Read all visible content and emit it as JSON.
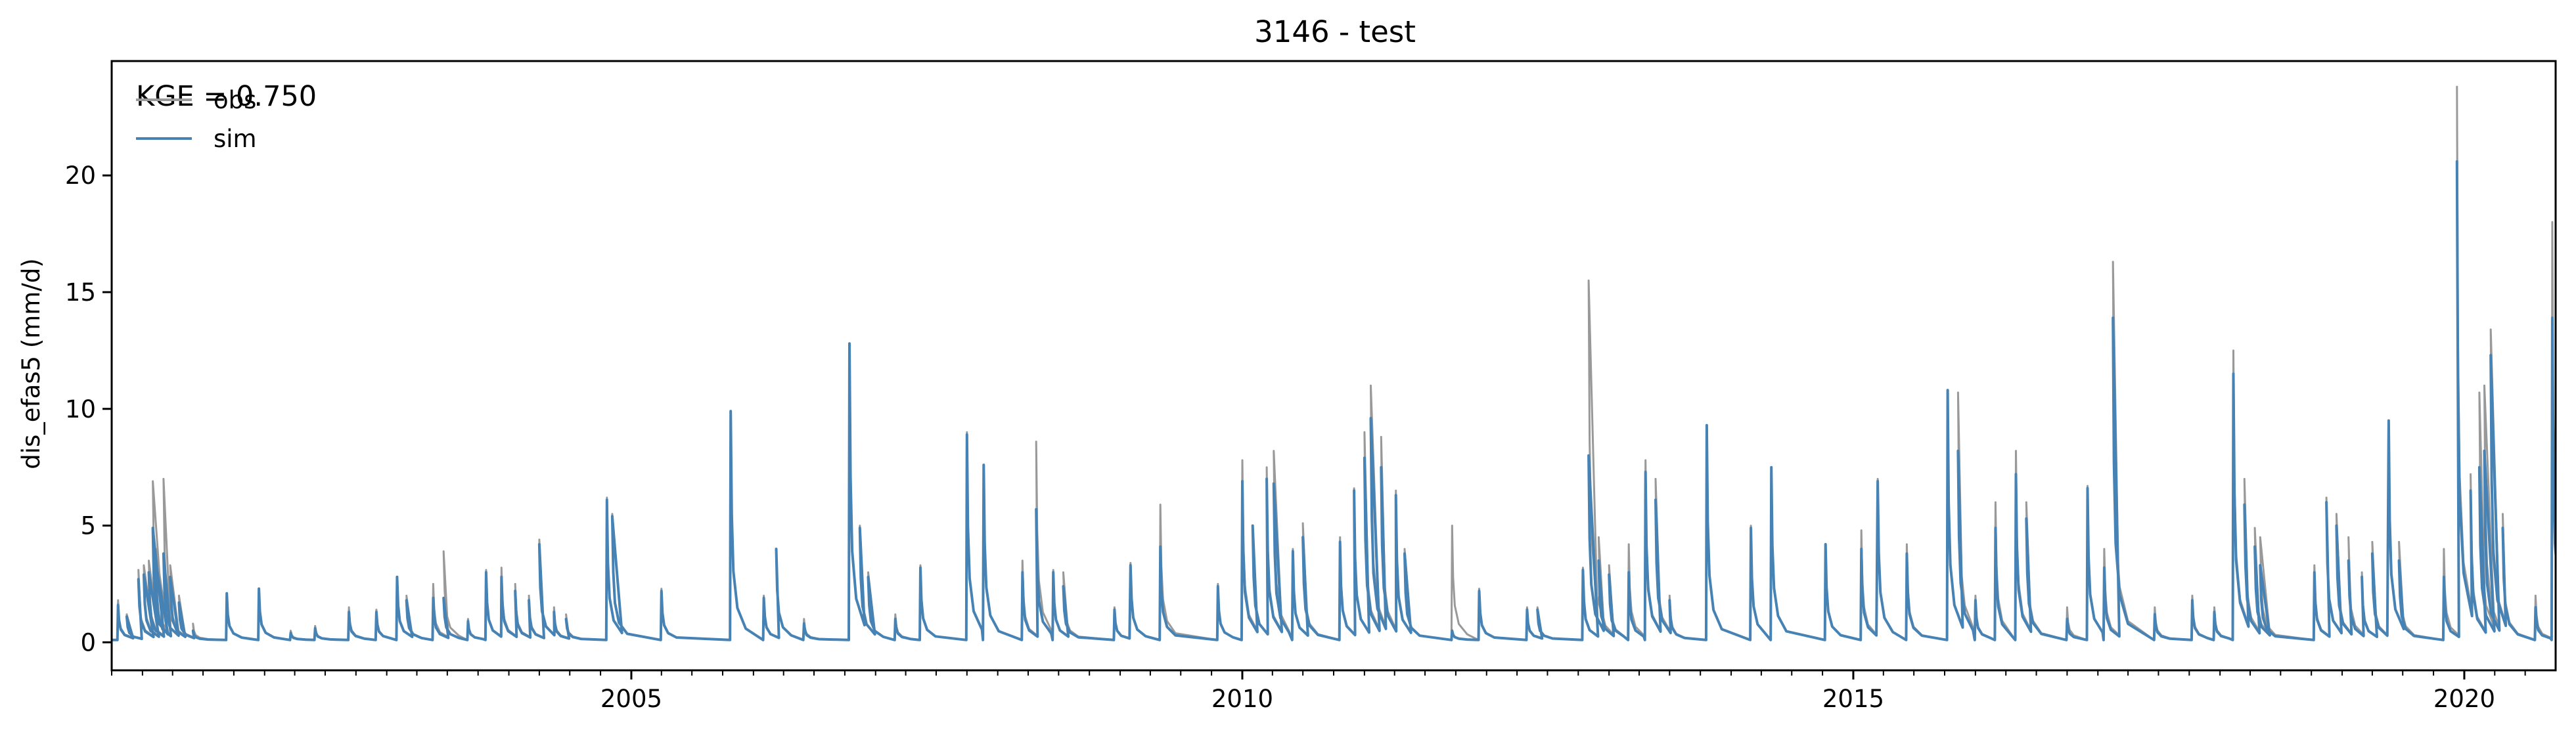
{
  "chart_data": {
    "type": "line",
    "title": "3146 - test",
    "xlabel": "",
    "ylabel": "dis_efas5 (mm/d)",
    "xlim": [
      "2000-10-01",
      "2020-09-30"
    ],
    "ylim": [
      -1.2,
      24.9
    ],
    "x_ticks": [
      {
        "date": "2005-01-01",
        "label": "2005"
      },
      {
        "date": "2010-01-01",
        "label": "2010"
      },
      {
        "date": "2015-01-01",
        "label": "2015"
      },
      {
        "date": "2020-01-01",
        "label": "2020"
      }
    ],
    "y_ticks": [
      0,
      5,
      10,
      15,
      20
    ],
    "grid": false,
    "legend_position": "top-left",
    "annotation": "KGE = 0.750",
    "baseflow": 0.1,
    "series": [
      {
        "name": "obs",
        "color": "#999999",
        "peaks": [
          [
            "2000-10-20",
            1.8
          ],
          [
            "2000-11-15",
            1.2
          ],
          [
            "2000-12-20",
            3.1
          ],
          [
            "2001-01-05",
            3.3
          ],
          [
            "2001-01-20",
            3.5
          ],
          [
            "2001-02-01",
            6.9
          ],
          [
            "2001-02-10",
            4.0
          ],
          [
            "2001-03-05",
            7.0
          ],
          [
            "2001-03-25",
            3.3
          ],
          [
            "2001-04-20",
            2.0
          ],
          [
            "2001-06-01",
            0.8
          ],
          [
            "2001-09-10",
            2.1
          ],
          [
            "2001-12-15",
            2.3
          ],
          [
            "2002-03-20",
            0.5
          ],
          [
            "2002-06-01",
            0.7
          ],
          [
            "2002-09-10",
            1.5
          ],
          [
            "2002-12-01",
            1.4
          ],
          [
            "2003-02-01",
            2.8
          ],
          [
            "2003-03-01",
            2.0
          ],
          [
            "2003-05-20",
            2.5
          ],
          [
            "2003-06-20",
            3.9
          ],
          [
            "2003-09-01",
            1.0
          ],
          [
            "2003-10-25",
            3.1
          ],
          [
            "2003-12-10",
            3.2
          ],
          [
            "2004-01-20",
            2.5
          ],
          [
            "2004-03-01",
            2.0
          ],
          [
            "2004-04-01",
            4.4
          ],
          [
            "2004-05-15",
            1.5
          ],
          [
            "2004-06-20",
            1.2
          ],
          [
            "2004-10-20",
            6.2
          ],
          [
            "2004-11-05",
            5.5
          ],
          [
            "2005-04-01",
            2.3
          ],
          [
            "2005-10-25",
            9.9
          ],
          [
            "2006-02-01",
            2.0
          ],
          [
            "2006-03-10",
            4.0
          ],
          [
            "2006-06-01",
            1.0
          ],
          [
            "2006-10-15",
            12.8
          ],
          [
            "2006-11-15",
            5.0
          ],
          [
            "2006-12-10",
            3.0
          ],
          [
            "2007-03-01",
            1.2
          ],
          [
            "2007-05-15",
            3.3
          ],
          [
            "2007-10-01",
            9.0
          ],
          [
            "2007-11-20",
            7.6
          ],
          [
            "2008-03-15",
            3.5
          ],
          [
            "2008-04-25",
            8.6
          ],
          [
            "2008-06-15",
            3.1
          ],
          [
            "2008-07-15",
            3.0
          ],
          [
            "2008-12-15",
            1.5
          ],
          [
            "2009-02-01",
            3.4
          ],
          [
            "2009-05-01",
            5.9
          ],
          [
            "2009-10-20",
            2.5
          ],
          [
            "2010-01-01",
            7.8
          ],
          [
            "2010-02-01",
            5.0
          ],
          [
            "2010-03-15",
            7.5
          ],
          [
            "2010-04-05",
            8.2
          ],
          [
            "2010-06-01",
            4.0
          ],
          [
            "2010-07-01",
            5.1
          ],
          [
            "2010-10-20",
            4.5
          ],
          [
            "2010-12-01",
            6.6
          ],
          [
            "2011-01-01",
            9.0
          ],
          [
            "2011-01-20",
            11.0
          ],
          [
            "2011-02-20",
            8.8
          ],
          [
            "2011-04-05",
            6.5
          ],
          [
            "2011-05-01",
            4.0
          ],
          [
            "2011-09-20",
            5.0
          ],
          [
            "2011-12-10",
            2.3
          ],
          [
            "2012-05-01",
            1.5
          ],
          [
            "2012-06-01",
            1.5
          ],
          [
            "2012-10-15",
            3.2
          ],
          [
            "2012-11-01",
            15.5
          ],
          [
            "2012-12-01",
            4.5
          ],
          [
            "2013-01-01",
            3.3
          ],
          [
            "2013-03-01",
            4.2
          ],
          [
            "2013-04-20",
            7.8
          ],
          [
            "2013-05-20",
            7.0
          ],
          [
            "2013-07-01",
            2.0
          ],
          [
            "2013-10-20",
            9.3
          ],
          [
            "2014-03-01",
            5.0
          ],
          [
            "2014-05-01",
            7.5
          ],
          [
            "2014-10-10",
            4.2
          ],
          [
            "2015-01-25",
            4.8
          ],
          [
            "2015-03-15",
            7.0
          ],
          [
            "2015-06-10",
            4.2
          ],
          [
            "2015-10-10",
            10.8
          ],
          [
            "2015-11-10",
            10.7
          ],
          [
            "2016-01-01",
            2.0
          ],
          [
            "2016-03-01",
            6.0
          ],
          [
            "2016-05-01",
            8.2
          ],
          [
            "2016-06-01",
            6.0
          ],
          [
            "2016-10-01",
            1.5
          ],
          [
            "2016-12-01",
            6.7
          ],
          [
            "2017-01-20",
            4.0
          ],
          [
            "2017-02-15",
            16.3
          ],
          [
            "2017-06-20",
            1.5
          ],
          [
            "2017-10-10",
            2.0
          ],
          [
            "2017-12-15",
            1.5
          ],
          [
            "2018-02-10",
            12.5
          ],
          [
            "2018-03-15",
            7.0
          ],
          [
            "2018-04-15",
            4.9
          ],
          [
            "2018-05-01",
            4.5
          ],
          [
            "2018-10-10",
            3.3
          ],
          [
            "2018-11-15",
            6.2
          ],
          [
            "2018-12-15",
            5.5
          ],
          [
            "2019-01-20",
            4.5
          ],
          [
            "2019-03-01",
            3.0
          ],
          [
            "2019-04-01",
            4.3
          ],
          [
            "2019-05-20",
            9.5
          ],
          [
            "2019-06-20",
            4.3
          ],
          [
            "2019-11-01",
            4.0
          ],
          [
            "2019-12-10",
            23.8
          ],
          [
            "2020-01-20",
            7.2
          ],
          [
            "2020-02-15",
            10.7
          ],
          [
            "2020-03-01",
            11.0
          ],
          [
            "2020-03-20",
            13.4
          ],
          [
            "2020-04-25",
            5.5
          ],
          [
            "2020-08-01",
            2.0
          ],
          [
            "2020-09-20",
            18.0
          ]
        ]
      },
      {
        "name": "sim",
        "color": "#4682b4",
        "peaks": [
          [
            "2000-10-20",
            1.6
          ],
          [
            "2000-11-15",
            1.1
          ],
          [
            "2000-12-20",
            2.7
          ],
          [
            "2001-01-05",
            2.9
          ],
          [
            "2001-01-20",
            3.0
          ],
          [
            "2001-02-01",
            4.9
          ],
          [
            "2001-02-10",
            3.4
          ],
          [
            "2001-03-05",
            3.8
          ],
          [
            "2001-03-25",
            2.8
          ],
          [
            "2001-04-20",
            1.7
          ],
          [
            "2001-06-01",
            0.5
          ],
          [
            "2001-09-10",
            2.1
          ],
          [
            "2001-12-15",
            2.3
          ],
          [
            "2002-03-20",
            0.4
          ],
          [
            "2002-06-01",
            0.6
          ],
          [
            "2002-09-10",
            1.3
          ],
          [
            "2002-12-01",
            1.3
          ],
          [
            "2003-02-01",
            2.8
          ],
          [
            "2003-03-01",
            1.8
          ],
          [
            "2003-05-20",
            1.9
          ],
          [
            "2003-06-20",
            1.9
          ],
          [
            "2003-09-01",
            0.9
          ],
          [
            "2003-10-25",
            3.0
          ],
          [
            "2003-12-10",
            2.8
          ],
          [
            "2004-01-20",
            2.2
          ],
          [
            "2004-03-01",
            1.8
          ],
          [
            "2004-04-01",
            4.2
          ],
          [
            "2004-05-15",
            1.3
          ],
          [
            "2004-06-20",
            1.0
          ],
          [
            "2004-10-20",
            6.1
          ],
          [
            "2004-11-05",
            5.4
          ],
          [
            "2005-04-01",
            2.2
          ],
          [
            "2005-10-25",
            9.9
          ],
          [
            "2006-02-01",
            1.9
          ],
          [
            "2006-03-10",
            4.0
          ],
          [
            "2006-06-01",
            0.8
          ],
          [
            "2006-10-15",
            12.8
          ],
          [
            "2006-11-15",
            4.9
          ],
          [
            "2006-12-10",
            2.8
          ],
          [
            "2007-03-01",
            1.0
          ],
          [
            "2007-05-15",
            3.2
          ],
          [
            "2007-10-01",
            8.9
          ],
          [
            "2007-11-20",
            7.6
          ],
          [
            "2008-03-15",
            3.0
          ],
          [
            "2008-04-25",
            5.7
          ],
          [
            "2008-06-15",
            3.0
          ],
          [
            "2008-07-15",
            2.4
          ],
          [
            "2008-12-15",
            1.4
          ],
          [
            "2009-02-01",
            3.3
          ],
          [
            "2009-05-01",
            4.1
          ],
          [
            "2009-10-20",
            2.4
          ],
          [
            "2010-01-01",
            6.9
          ],
          [
            "2010-02-01",
            5.0
          ],
          [
            "2010-03-15",
            7.0
          ],
          [
            "2010-04-05",
            6.8
          ],
          [
            "2010-06-01",
            3.9
          ],
          [
            "2010-07-01",
            4.5
          ],
          [
            "2010-10-20",
            4.3
          ],
          [
            "2010-12-01",
            6.5
          ],
          [
            "2011-01-01",
            7.9
          ],
          [
            "2011-01-20",
            9.6
          ],
          [
            "2011-02-20",
            7.5
          ],
          [
            "2011-04-05",
            6.3
          ],
          [
            "2011-05-01",
            3.8
          ],
          [
            "2011-09-20",
            0.5
          ],
          [
            "2011-12-10",
            2.2
          ],
          [
            "2012-05-01",
            1.4
          ],
          [
            "2012-06-01",
            1.4
          ],
          [
            "2012-10-15",
            3.1
          ],
          [
            "2012-11-01",
            8.0
          ],
          [
            "2012-12-01",
            3.5
          ],
          [
            "2013-01-01",
            2.9
          ],
          [
            "2013-03-01",
            3.0
          ],
          [
            "2013-04-20",
            7.3
          ],
          [
            "2013-05-20",
            6.1
          ],
          [
            "2013-07-01",
            1.8
          ],
          [
            "2013-10-20",
            9.3
          ],
          [
            "2014-03-01",
            4.9
          ],
          [
            "2014-05-01",
            7.5
          ],
          [
            "2014-10-10",
            4.2
          ],
          [
            "2015-01-25",
            4.0
          ],
          [
            "2015-03-15",
            6.9
          ],
          [
            "2015-06-10",
            3.8
          ],
          [
            "2015-10-10",
            10.8
          ],
          [
            "2015-11-10",
            8.2
          ],
          [
            "2016-01-01",
            1.8
          ],
          [
            "2016-03-01",
            4.9
          ],
          [
            "2016-05-01",
            7.2
          ],
          [
            "2016-06-01",
            5.3
          ],
          [
            "2016-10-01",
            1.0
          ],
          [
            "2016-12-01",
            6.6
          ],
          [
            "2017-01-20",
            3.2
          ],
          [
            "2017-02-15",
            13.9
          ],
          [
            "2017-06-20",
            1.2
          ],
          [
            "2017-10-10",
            1.8
          ],
          [
            "2017-12-15",
            1.3
          ],
          [
            "2018-02-10",
            11.5
          ],
          [
            "2018-03-15",
            5.9
          ],
          [
            "2018-04-15",
            4.1
          ],
          [
            "2018-05-01",
            3.3
          ],
          [
            "2018-10-10",
            3.0
          ],
          [
            "2018-11-15",
            6.0
          ],
          [
            "2018-12-15",
            5.0
          ],
          [
            "2019-01-20",
            3.5
          ],
          [
            "2019-03-01",
            2.8
          ],
          [
            "2019-04-01",
            3.8
          ],
          [
            "2019-05-20",
            9.5
          ],
          [
            "2019-06-20",
            3.5
          ],
          [
            "2019-11-01",
            2.8
          ],
          [
            "2019-12-10",
            20.6
          ],
          [
            "2020-01-20",
            6.5
          ],
          [
            "2020-02-15",
            7.5
          ],
          [
            "2020-03-01",
            8.2
          ],
          [
            "2020-03-20",
            12.3
          ],
          [
            "2020-04-25",
            4.9
          ],
          [
            "2020-08-01",
            1.5
          ],
          [
            "2020-09-20",
            13.9
          ]
        ]
      }
    ]
  }
}
